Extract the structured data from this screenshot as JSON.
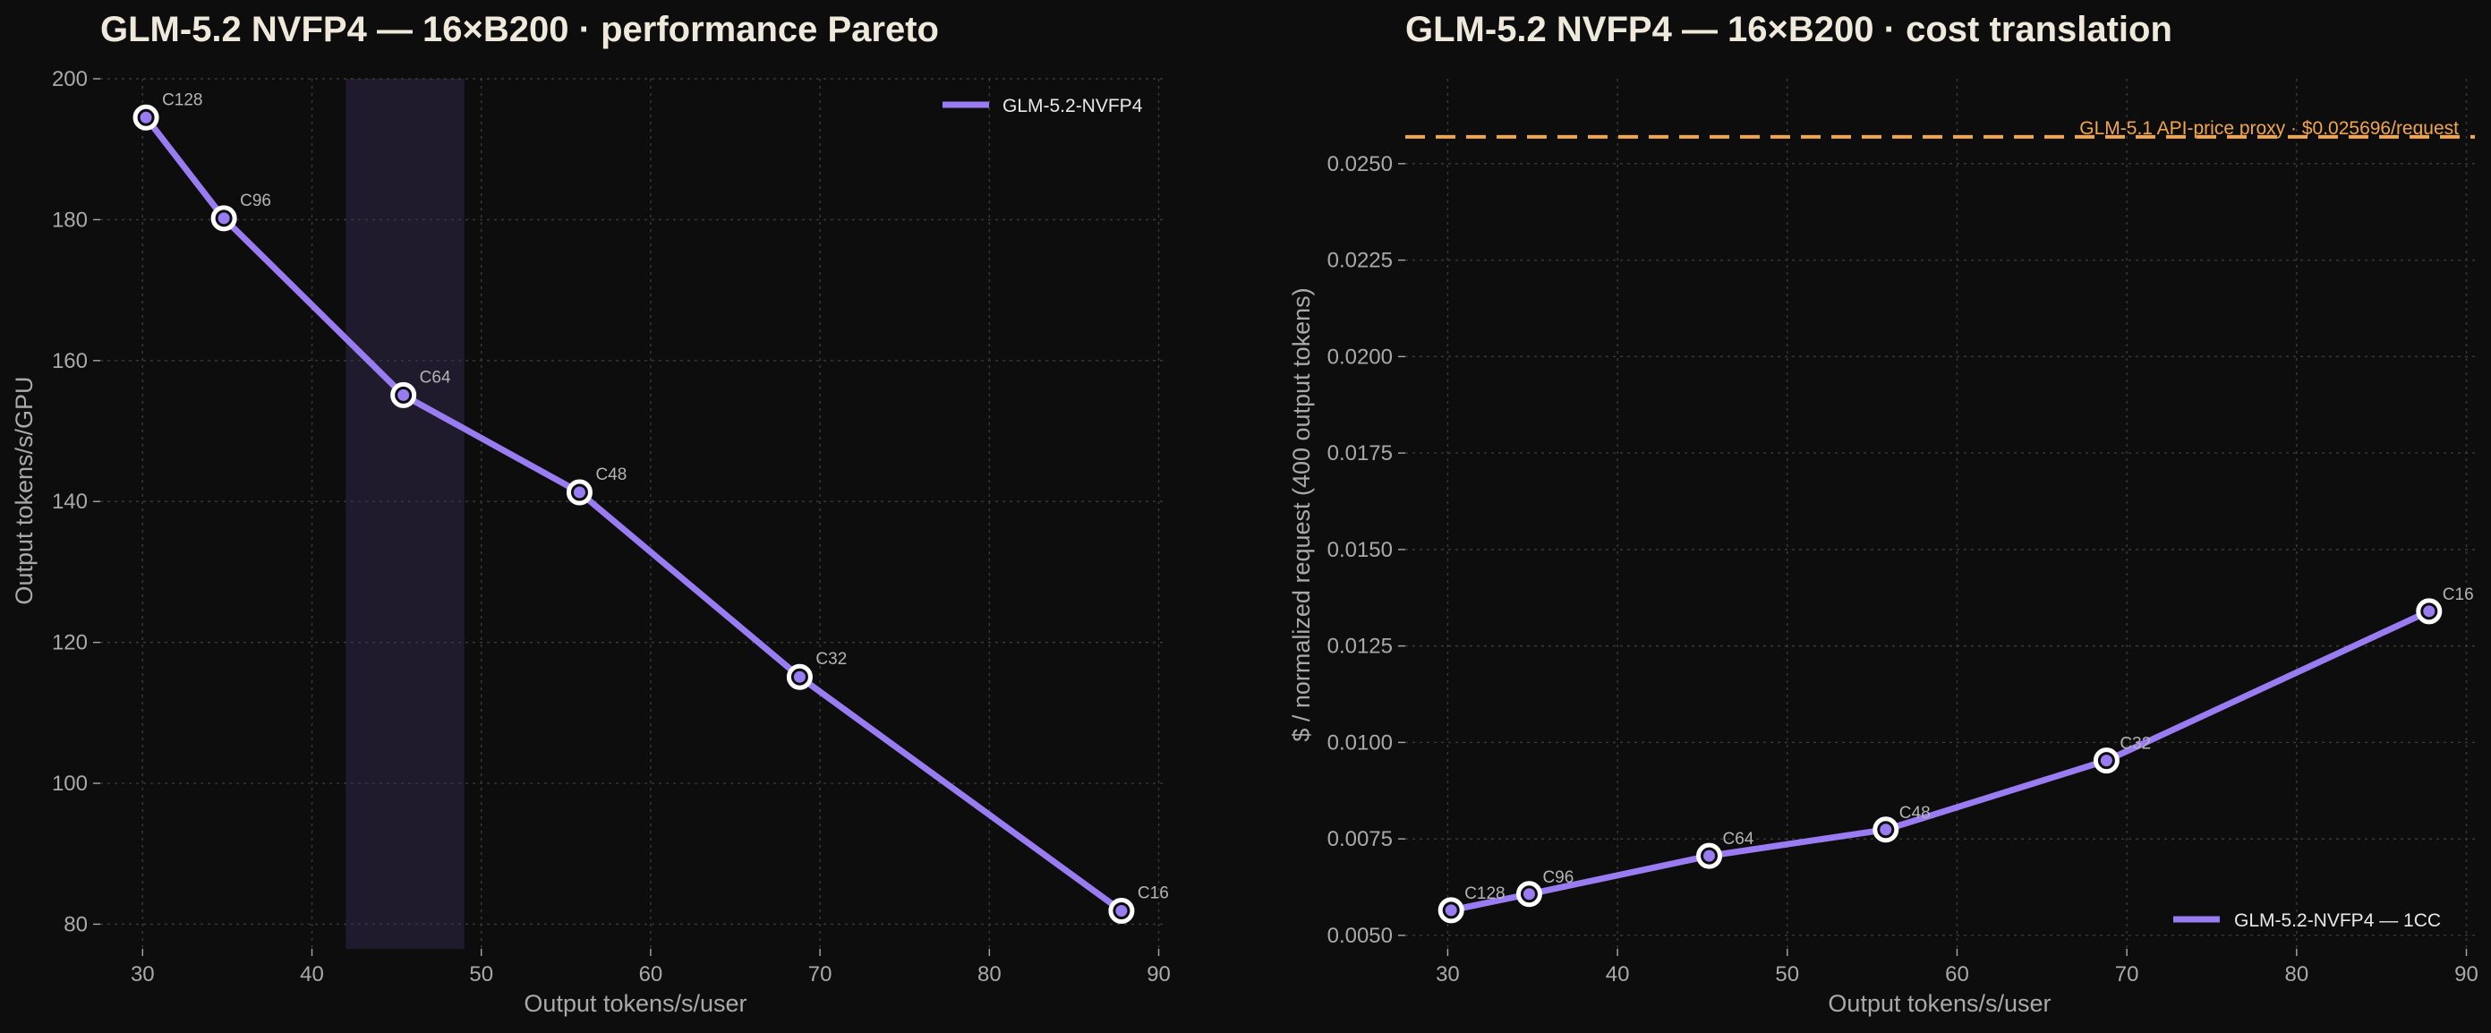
{
  "chart_data": [
    {
      "type": "line",
      "title": "GLM-5.2 NVFP4 — 16×B200 · performance Pareto",
      "xlabel": "Output tokens/s/user",
      "ylabel": "Output tokens/s/GPU",
      "xlim": [
        27.5,
        90.5
      ],
      "ylim": [
        76.5,
        200
      ],
      "xticks": [
        30,
        40,
        50,
        60,
        70,
        80,
        90
      ],
      "yticks": [
        80,
        100,
        120,
        140,
        160,
        180,
        200
      ],
      "grid": true,
      "legend_position": "top-right",
      "shaded_band": {
        "x_range": [
          42,
          49
        ],
        "color": "#1f1b2c"
      },
      "series": [
        {
          "name": "GLM-5.2-NVFP4",
          "color": "#9a7cf2",
          "points": [
            {
              "label": "C128",
              "x": 30.2,
              "y": 194.5
            },
            {
              "label": "C96",
              "x": 34.8,
              "y": 180.2
            },
            {
              "label": "C64",
              "x": 45.4,
              "y": 155.1
            },
            {
              "label": "C48",
              "x": 55.8,
              "y": 141.3
            },
            {
              "label": "C32",
              "x": 68.8,
              "y": 115.1
            },
            {
              "label": "C16",
              "x": 87.8,
              "y": 81.9
            }
          ]
        }
      ]
    },
    {
      "type": "line",
      "title": "GLM-5.2 NVFP4 — 16×B200 · cost translation",
      "xlabel": "Output tokens/s/user",
      "ylabel": "$ / normalized request (400 output tokens)",
      "xlim": [
        27.5,
        90.5
      ],
      "ylim": [
        0.00465,
        0.0272
      ],
      "xticks": [
        30,
        40,
        50,
        60,
        70,
        80,
        90
      ],
      "yticks": [
        "0.0050",
        "0.0075",
        "0.0100",
        "0.0125",
        "0.0150",
        "0.0175",
        "0.0200",
        "0.0225",
        "0.0250"
      ],
      "grid": true,
      "legend_position": "bottom-right",
      "reference_line": {
        "y": 0.025696,
        "label": "GLM-5.1 API-price proxy · $0.025696/request",
        "color": "#f0a64e"
      },
      "series": [
        {
          "name": "GLM-5.2-NVFP4 — 1CC",
          "color": "#9a7cf2",
          "points": [
            {
              "label": "C128",
              "x": 30.2,
              "y": 0.00565
            },
            {
              "label": "C96",
              "x": 34.8,
              "y": 0.00607
            },
            {
              "label": "C64",
              "x": 45.4,
              "y": 0.00706
            },
            {
              "label": "C48",
              "x": 55.8,
              "y": 0.00774
            },
            {
              "label": "C32",
              "x": 68.8,
              "y": 0.00953
            },
            {
              "label": "C16",
              "x": 87.8,
              "y": 0.0134
            }
          ]
        }
      ]
    }
  ]
}
